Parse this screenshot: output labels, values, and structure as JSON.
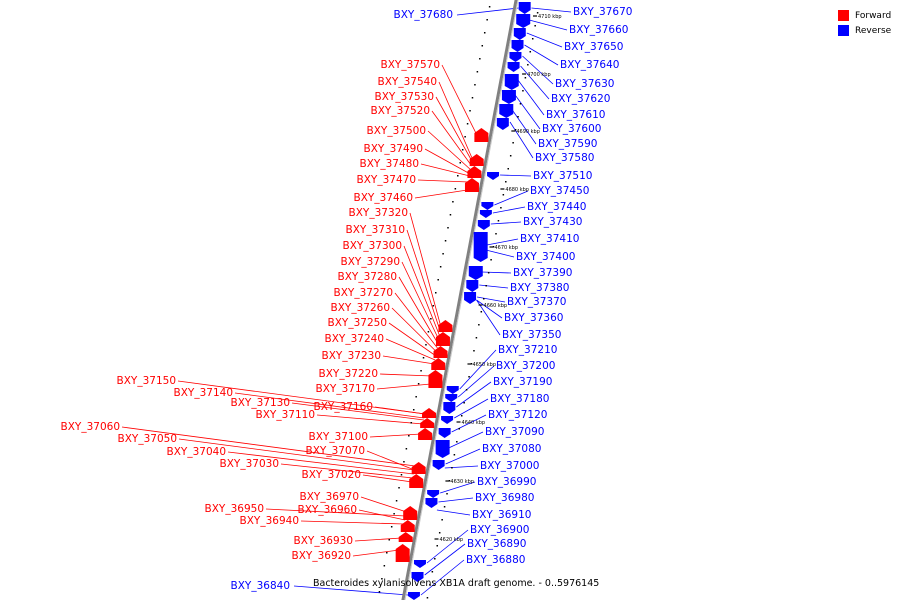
{
  "caption": "Bacteroides xylanisolvens XB1A draft genome. - 0..5976145",
  "legend": [
    {
      "label": "Forward",
      "color": "#ff0000"
    },
    {
      "label": "Reverse",
      "color": "#0000ff"
    }
  ],
  "colors": {
    "forward": "#ff0000",
    "reverse": "#0000ff",
    "backbone": "#808080"
  },
  "ticks": [
    "4710 kbp",
    "4700 kbp",
    "4690 kbp",
    "4680 kbp",
    "4670 kbp",
    "4660 kbp",
    "4650 kbp",
    "4640 kbp",
    "4630 kbp",
    "4620 kbp"
  ],
  "reverse_genes": [
    "BXY_37670",
    "BXY_37660",
    "BXY_37650",
    "BXY_37640",
    "BXY_37630",
    "BXY_37620",
    "BXY_37610",
    "BXY_37600",
    "BXY_37590",
    "BXY_37580",
    "BXY_37510",
    "BXY_37450",
    "BXY_37440",
    "BXY_37430",
    "BXY_37410",
    "BXY_37400",
    "BXY_37390",
    "BXY_37380",
    "BXY_37370",
    "BXY_37360",
    "BXY_37350",
    "BXY_37210",
    "BXY_37200",
    "BXY_37190",
    "BXY_37180",
    "BXY_37120",
    "BXY_37090",
    "BXY_37080",
    "BXY_37000",
    "BXY_36990",
    "BXY_36980",
    "BXY_36910",
    "BXY_36900",
    "BXY_36890",
    "BXY_36880"
  ],
  "reverse_genes_left": [
    "BXY_37680",
    "BXY_36840"
  ],
  "forward_genes": [
    "BXY_37570",
    "BXY_37540",
    "BXY_37530",
    "BXY_37520",
    "BXY_37500",
    "BXY_37490",
    "BXY_37480",
    "BXY_37470",
    "BXY_37460",
    "BXY_37320",
    "BXY_37310",
    "BXY_37300",
    "BXY_37290",
    "BXY_37280",
    "BXY_37270",
    "BXY_37260",
    "BXY_37250",
    "BXY_37240",
    "BXY_37230",
    "BXY_37220",
    "BXY_37170",
    "BXY_37160",
    "BXY_37100",
    "BXY_37070",
    "BXY_37020",
    "BXY_36970",
    "BXY_36960",
    "BXY_36930",
    "BXY_36920"
  ],
  "forward_genes_far": [
    "BXY_37150",
    "BXY_37140",
    "BXY_37130",
    "BXY_37110",
    "BXY_37060",
    "BXY_37050",
    "BXY_37040",
    "BXY_37030",
    "BXY_36950",
    "BXY_36940"
  ]
}
